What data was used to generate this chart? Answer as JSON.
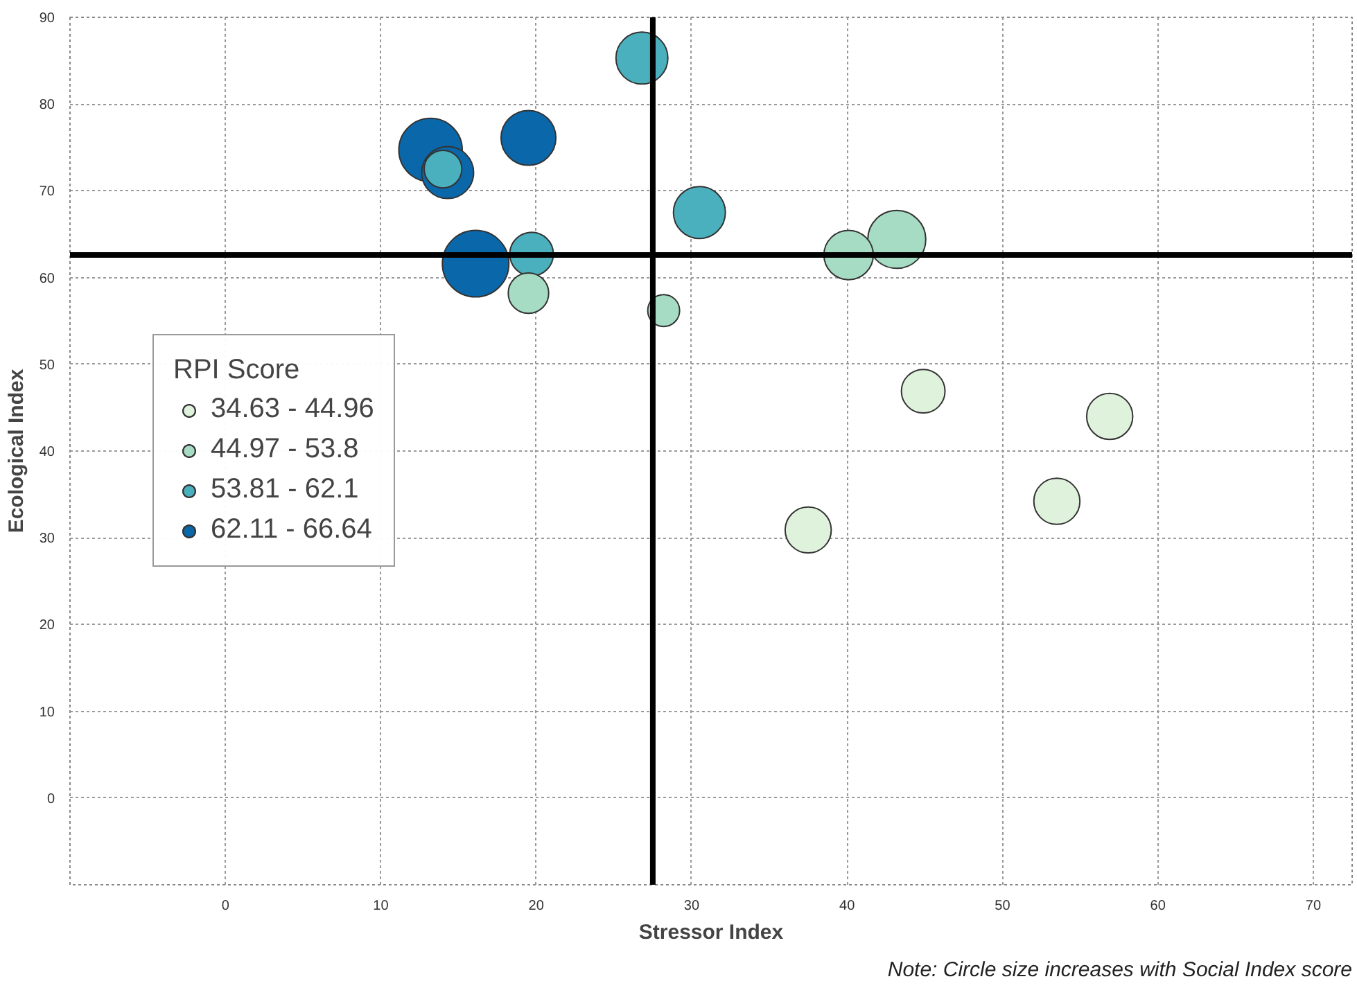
{
  "chart_data": {
    "type": "bubble",
    "xlabel": "Stressor Index",
    "ylabel": "Ecological Index",
    "legend_title": "RPI Score",
    "annotations": [
      "Note: Circle size increases with Social Index score"
    ],
    "xlim": [
      -10,
      72.5
    ],
    "ylim": [
      -10,
      90
    ],
    "xticks": [
      {
        "value": -10,
        "label": null
      },
      0,
      10,
      20,
      30,
      40,
      50,
      60,
      70
    ],
    "yticks": [
      {
        "value": -10,
        "label": null
      },
      0,
      10,
      20,
      30,
      40,
      50,
      60,
      70,
      80,
      90
    ],
    "grid": true,
    "legend": "left",
    "ref_lines": [
      {
        "axis": "x",
        "value": 27.5,
        "color": "#000000"
      },
      {
        "axis": "y",
        "value": 62.6,
        "color": "#000000"
      }
    ],
    "series": [
      {
        "name": "34.63 - 44.96",
        "color": "#dff2dc",
        "x": [
          44.9,
          56.9,
          53.5,
          37.5
        ],
        "values": [
          46.9,
          44.0,
          34.2,
          30.9
        ],
        "sizes": [
          0.43,
          0.48,
          0.48,
          0.48
        ]
      },
      {
        "name": "44.97 - 53.8",
        "color": "#a6dcc4",
        "x": [
          19.5,
          28.2,
          40.1,
          43.2
        ],
        "values": [
          58.2,
          56.2,
          62.6,
          64.4
        ],
        "sizes": [
          0.37,
          0.23,
          0.55,
          0.76
        ]
      },
      {
        "name": "53.81 - 62.1",
        "color": "#4bb0bd",
        "x": [
          26.8,
          19.7,
          30.5,
          14.0
        ],
        "values": [
          85.3,
          62.7,
          67.5,
          72.5
        ],
        "sizes": [
          0.61,
          0.43,
          0.61,
          0.32
        ]
      },
      {
        "name": "62.11 - 66.64",
        "color": "#0a68aa",
        "x": [
          13.2,
          14.3,
          19.5,
          16.1
        ],
        "values": [
          74.7,
          72.1,
          76.1,
          61.6
        ],
        "sizes": [
          0.91,
          0.61,
          0.68,
          1.0
        ]
      }
    ]
  }
}
